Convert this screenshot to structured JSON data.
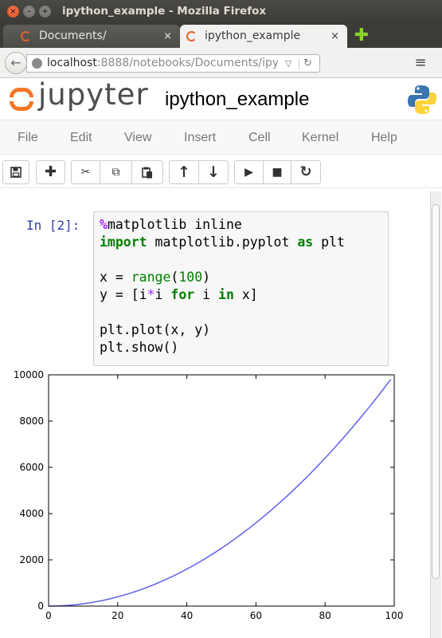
{
  "window": {
    "title": "ipython_example - Mozilla Firefox",
    "close_glyph": "×",
    "min_glyph": "–",
    "max_glyph": "+"
  },
  "tabs": [
    {
      "label": "Documents/",
      "close": "×"
    },
    {
      "label": "ipython_example",
      "close": "×"
    }
  ],
  "new_tab_glyph": "✚",
  "nav": {
    "back_glyph": "←",
    "url_host": "localhost",
    "url_rest": ":8888/notebooks/Documents/ipy",
    "dropdown_glyph": "▽",
    "reload_glyph": "↻",
    "menu_glyph": "≡"
  },
  "jupyter": {
    "wordmark": "jupyter",
    "notebook_name": "ipython_example"
  },
  "menu": [
    "File",
    "Edit",
    "View",
    "Insert",
    "Cell",
    "Kernel",
    "Help"
  ],
  "toolbar": {
    "save": "💾",
    "insert": "✚",
    "cut": "✂",
    "copy": "⧉",
    "paste": "📋",
    "up": "↑",
    "down": "↓",
    "run": "▶",
    "stop": "■",
    "restart": "↻"
  },
  "cell": {
    "prompt": "In [2]:",
    "lines": {
      "l1_magic": "%",
      "l1_rest": "matplotlib inline",
      "l2_kw1": "import",
      "l2_mid": " matplotlib.pyplot ",
      "l2_kw2": "as",
      "l2_rest": " plt",
      "l3_a": "x = ",
      "l3_fn": "range",
      "l3_b": "(",
      "l3_num": "100",
      "l3_c": ")",
      "l4_a": "y = [i",
      "l4_op": "*",
      "l4_b": "i ",
      "l4_kw1": "for",
      "l4_c": " i ",
      "l4_kw2": "in",
      "l4_d": " x]",
      "l5": "plt.plot(x, y)",
      "l6": "plt.show()"
    }
  },
  "chart_data": {
    "type": "line",
    "x_formula_range": [
      0,
      99
    ],
    "series": [
      {
        "color": "#6060f0",
        "x": [
          0,
          10,
          20,
          30,
          40,
          50,
          60,
          70,
          80,
          90,
          99
        ],
        "y": [
          0,
          100,
          400,
          900,
          1600,
          2500,
          3600,
          4900,
          6400,
          8100,
          9801
        ]
      }
    ],
    "xlim": [
      0,
      100
    ],
    "ylim": [
      0,
      10000
    ],
    "xticks": [
      "0",
      "20",
      "40",
      "60",
      "80",
      "100"
    ],
    "yticks": [
      "0",
      "2000",
      "4000",
      "6000",
      "8000",
      "10000"
    ],
    "grid": false
  }
}
